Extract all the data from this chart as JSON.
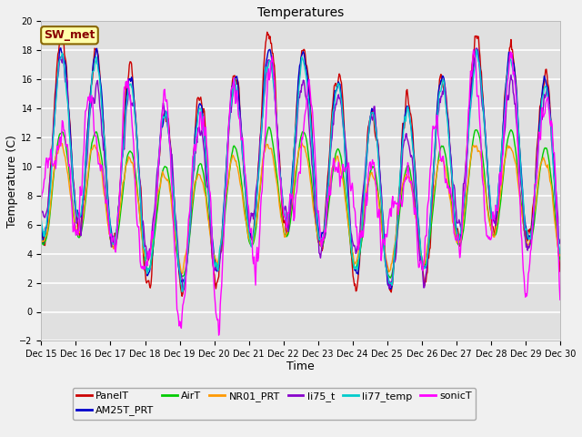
{
  "title": "Temperatures",
  "xlabel": "Time",
  "ylabel": "Temperature (C)",
  "ylim": [
    -2,
    20
  ],
  "yticks": [
    -2,
    0,
    2,
    4,
    6,
    8,
    10,
    12,
    14,
    16,
    18,
    20
  ],
  "n_days": 15,
  "xtick_labels": [
    "Dec 15",
    "Dec 16",
    "Dec 17",
    "Dec 18",
    "Dec 19",
    "Dec 20",
    "Dec 21",
    "Dec 22",
    "Dec 23",
    "Dec 24",
    "Dec 25",
    "Dec 26",
    "Dec 27",
    "Dec 28",
    "Dec 29",
    "Dec 30"
  ],
  "series_colors": {
    "PanelT": "#cc0000",
    "AM25T_PRT": "#0000cc",
    "AirT": "#00cc00",
    "NR01_PRT": "#ff9900",
    "li75_t": "#8800cc",
    "li77_temp": "#00cccc",
    "sonicT": "#ff00ff"
  },
  "legend_label": "SW_met",
  "legend_box_facecolor": "#ffffaa",
  "legend_box_edgecolor": "#886600",
  "legend_text_color": "#880000",
  "plot_bg": "#e0e0e0",
  "fig_bg": "#f0f0f0",
  "grid_color": "#ffffff",
  "title_fontsize": 10,
  "axis_fontsize": 9,
  "tick_fontsize": 7,
  "legend_fontsize": 8,
  "linewidth": 1.0
}
